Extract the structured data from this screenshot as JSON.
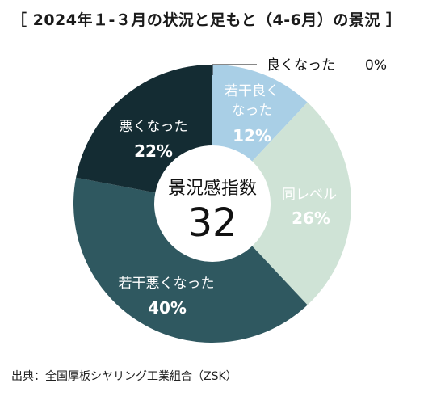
{
  "title": "［ 2024年１-３月の状況と足もと（4-6月）の景況 ］",
  "source": "出典：全国厚板シヤリング工業組合（ZSK）",
  "chart_data": {
    "type": "pie",
    "variant": "donut",
    "center_label": "景況感指数",
    "center_value": "32",
    "slices": [
      {
        "label": "良くなった",
        "value": 0,
        "value_label": "0%",
        "color": "#9ecbe3"
      },
      {
        "label": "若干良くなった",
        "value": 12,
        "value_label": "12%",
        "color": "#a9cfe6"
      },
      {
        "label": "同レベル",
        "value": 26,
        "value_label": "26%",
        "color": "#cfe3d6"
      },
      {
        "label": "若干悪くなった",
        "value": 40,
        "value_label": "40%",
        "color": "#2f5860"
      },
      {
        "label": "悪くなった",
        "value": 22,
        "value_label": "22%",
        "color": "#142c33"
      }
    ]
  }
}
